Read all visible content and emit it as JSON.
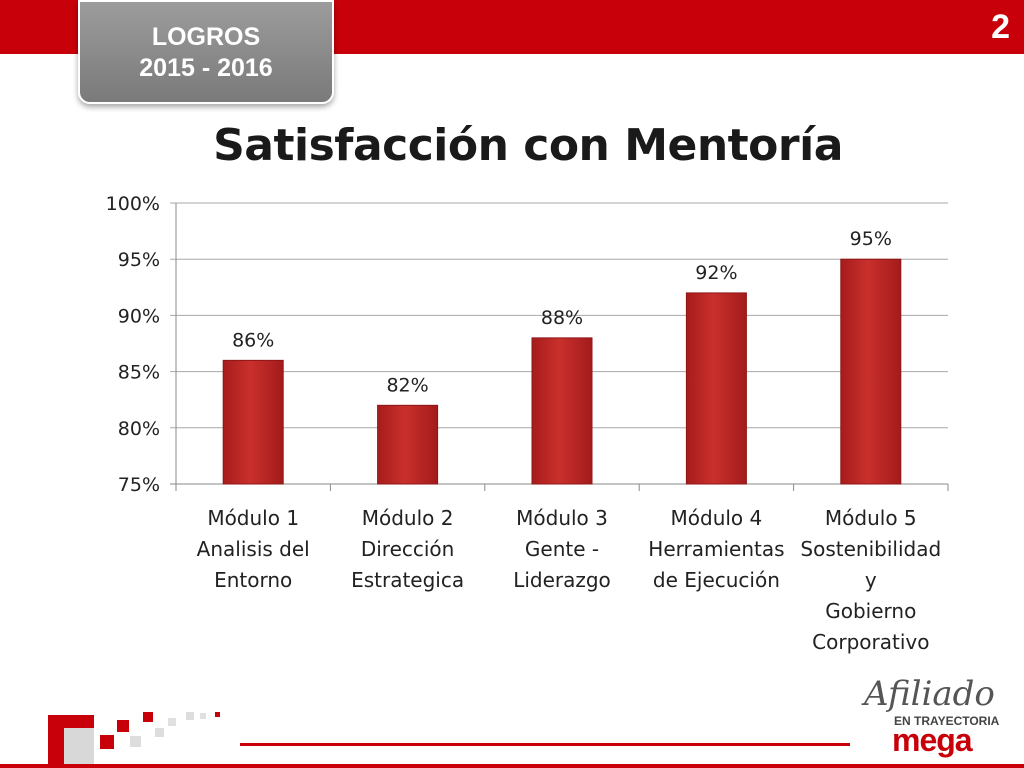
{
  "header": {
    "badge_line1": "LOGROS",
    "badge_line2": "2015 - 2016",
    "page_number": "2",
    "accent_color": "#c8000a",
    "badge_color": "#8a8a8a"
  },
  "chart_data": {
    "type": "bar",
    "title": "Satisfacción con Mentoría",
    "categories": [
      [
        "Módulo 1",
        "Analisis del",
        "Entorno"
      ],
      [
        "Módulo 2",
        "Dirección",
        "Estrategica"
      ],
      [
        "Módulo 3",
        "Gente -",
        "Liderazgo"
      ],
      [
        "Módulo 4",
        "Herramientas",
        "de Ejecución"
      ],
      [
        "Módulo 5",
        "Sostenibilidad",
        "y",
        "Gobierno",
        "Corporativo"
      ]
    ],
    "values": [
      86,
      82,
      88,
      92,
      95
    ],
    "data_labels": [
      "86%",
      "82%",
      "88%",
      "92%",
      "95%"
    ],
    "ylim": [
      75,
      100
    ],
    "yticks": [
      75,
      80,
      85,
      90,
      95,
      100
    ],
    "ytick_labels": [
      "75%",
      "80%",
      "85%",
      "90%",
      "95%",
      "100%"
    ],
    "grid": true,
    "bar_color": "#c9302c",
    "xlabel": "",
    "ylabel": ""
  },
  "logo": {
    "script": "Afiliado",
    "subtitle": "EN TRAYECTORIA",
    "brand": "mega"
  }
}
